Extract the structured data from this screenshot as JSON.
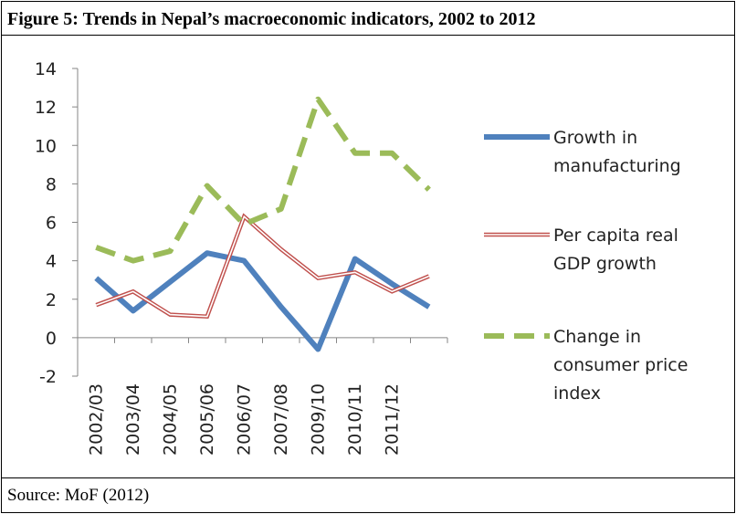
{
  "figure": {
    "title": "Figure 5: Trends in Nepal’s macroeconomic indicators, 2002 to 2012",
    "source": "Source: MoF (2012)"
  },
  "chart_data": {
    "type": "line",
    "title": "Figure 5: Trends in Nepal’s macroeconomic indicators, 2002 to 2012",
    "xlabel": "",
    "ylabel": "",
    "ylim": [
      -2,
      14
    ],
    "yticks": [
      -2,
      0,
      2,
      4,
      6,
      8,
      10,
      12,
      14
    ],
    "grid": false,
    "legend_position": "right",
    "categories": [
      "2002/03",
      "2003/04",
      "2004/05",
      "2005/06",
      "2006/07",
      "2007/08",
      "2009/10",
      "2010/11",
      "2011/12",
      ""
    ],
    "series": [
      {
        "name": "Growth in manufacturing",
        "legend_lines": [
          "Growth in",
          "manufacturing"
        ],
        "color": "#4f81bd",
        "style": "thick-solid",
        "values": [
          3.1,
          1.4,
          2.9,
          4.4,
          4.0,
          1.6,
          -0.6,
          4.1,
          2.8,
          1.6
        ]
      },
      {
        "name": "Per capita real GDP growth",
        "legend_lines": [
          "Per capita real",
          "GDP growth"
        ],
        "color": "#c0504d",
        "style": "double-line",
        "values": [
          1.7,
          2.4,
          1.2,
          1.1,
          6.3,
          4.6,
          3.1,
          3.4,
          2.4,
          3.2
        ]
      },
      {
        "name": "Change in consumer price index",
        "legend_lines": [
          "Change in",
          "consumer price",
          "index"
        ],
        "color": "#9bbb59",
        "style": "dashed",
        "values": [
          4.7,
          4.0,
          4.5,
          7.9,
          5.9,
          6.7,
          12.4,
          9.6,
          9.6,
          7.7
        ]
      }
    ]
  }
}
